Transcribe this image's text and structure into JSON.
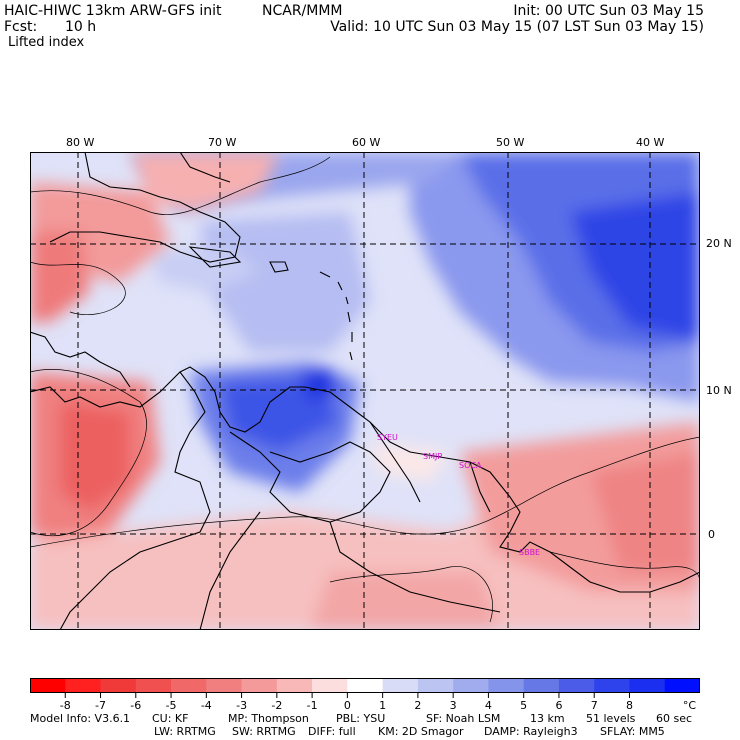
{
  "header": {
    "model_title": "HAIC-HIWC 13km ARW-GFS init",
    "org": "NCAR/MMM",
    "fcst_label": "Fcst:",
    "fcst_value": "10 h",
    "field": "Lifted index",
    "init": "Init: 00 UTC Sun 03 May 15",
    "valid": "Valid: 10 UTC Sun 03 May 15 (07 LST Sun 03 May 15)"
  },
  "map": {
    "lon_labels": [
      "80 W",
      "70 W",
      "60 W",
      "50 W",
      "40 W"
    ],
    "lat_labels": [
      "20 N",
      "10 N",
      "0"
    ],
    "station_labels": [
      "SYEU",
      "SMJP",
      "SOCA",
      "SBBE"
    ],
    "colors": {
      "blue_core": "#1a33e0",
      "red_core": "#ef6a6a",
      "neutral": "#fbefef",
      "grid": "#000000",
      "station_text": "#d010d0"
    }
  },
  "colorbar": {
    "ticks": [
      "-8",
      "-7",
      "-6",
      "-5",
      "-4",
      "-3",
      "-2",
      "-1",
      "0",
      "1",
      "2",
      "3",
      "4",
      "5",
      "6",
      "7",
      "8"
    ],
    "unit": "°C",
    "colors": [
      "#ff0000",
      "#ff2020",
      "#f03a3a",
      "#f05050",
      "#f06868",
      "#f27f7f",
      "#f59a9a",
      "#f8b8b8",
      "#fcdede",
      "#ffffff",
      "#d8dcf6",
      "#bcc4f2",
      "#a0acee",
      "#8494ea",
      "#6677e6",
      "#4a5ce8",
      "#2e43ec",
      "#1a2ff0",
      "#0010ff"
    ]
  },
  "footer": {
    "line1": [
      "Model Info: V3.6.1",
      "CU: KF",
      "MP: Thompson",
      "PBL: YSU",
      "SF: Noah LSM",
      "13 km",
      "51 levels",
      "60 sec"
    ],
    "line2": [
      "LW: RRTMG",
      "SW: RRTMG",
      "DIFF: full",
      "KM: 2D Smagor",
      "DAMP: Rayleigh3",
      "SFLAY: MM5"
    ]
  }
}
